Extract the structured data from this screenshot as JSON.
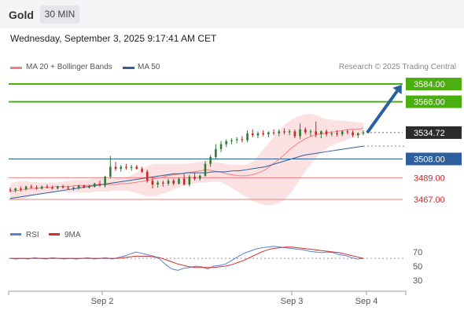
{
  "header": {
    "symbol": "Gold",
    "timeframe": "30 MIN",
    "datetime": "Wednesday, September 3, 2025 9:17:41 AM CET"
  },
  "legend": {
    "bollinger_label": "MA 20 + Bollinger Bands",
    "ma50_label": "MA 50",
    "credit": "Research © 2025 Trading Central",
    "rsi_label": "RSI",
    "rsi_ma_label": "9MA"
  },
  "colors": {
    "up_candle": "#2e7d32",
    "down_candle": "#c62828",
    "bollinger": "#f08080",
    "ma50": "#2c5f9e",
    "target_green": "#4caf10",
    "support_red": "#f08080",
    "pivot_blue": "#2c5f9e",
    "arrow": "#2c5f9e",
    "rsi": "#5b7fd4",
    "rsi_ma": "#d32f2f"
  },
  "chart_data": [
    {
      "type": "candlestick",
      "ylim": [
        3454,
        3600
      ],
      "x_ticks": [
        "Sep 2",
        "Sep 3",
        "Sep 4"
      ],
      "series": [
        {
          "name": "MA 20 + Bollinger Bands",
          "values": [
            3475,
            3476,
            3477,
            3478,
            3478,
            3479,
            3479,
            3480,
            3480,
            3480,
            3481,
            3481,
            3481,
            3482,
            3482,
            3482,
            3482,
            3483,
            3483,
            3484,
            3485,
            3486,
            3488,
            3489,
            3491,
            3492,
            3493,
            3494,
            3495,
            3496,
            3497,
            3496,
            3495,
            3493,
            3492,
            3491,
            3491,
            3492,
            3494,
            3497,
            3502,
            3507,
            3513,
            3519,
            3524,
            3528,
            3531,
            3533,
            3534,
            3535,
            3536,
            3537,
            3538,
            3538,
            3539
          ]
        },
        {
          "name": "MA 50",
          "values": [
            3468,
            3469,
            3470,
            3471,
            3472,
            3473,
            3474,
            3475,
            3476,
            3477,
            3478,
            3479,
            3480,
            3481,
            3482,
            3483,
            3484,
            3485,
            3486,
            3487,
            3488,
            3489,
            3490,
            3491,
            3492,
            3493,
            3493,
            3494,
            3494,
            3494,
            3494,
            3495,
            3495,
            3495,
            3496,
            3496,
            3497,
            3498,
            3499,
            3500,
            3502,
            3504,
            3506,
            3508,
            3510,
            3512,
            3513,
            3514,
            3515,
            3516,
            3517,
            3518,
            3519,
            3520,
            3521
          ]
        }
      ],
      "bollinger_upper": [
        3483,
        3485,
        3486,
        3485,
        3484,
        3484,
        3484,
        3484,
        3485,
        3486,
        3487,
        3487,
        3487,
        3488,
        3488,
        3488,
        3488,
        3489,
        3490,
        3493,
        3497,
        3501,
        3503,
        3503,
        3503,
        3503,
        3503,
        3503,
        3504,
        3505,
        3506,
        3505,
        3504,
        3503,
        3502,
        3502,
        3502,
        3505,
        3512,
        3520,
        3528,
        3536,
        3543,
        3548,
        3551,
        3553,
        3554,
        3552,
        3549,
        3548,
        3547,
        3547,
        3546,
        3545,
        3545
      ],
      "bollinger_lower": [
        3466,
        3466,
        3467,
        3470,
        3472,
        3473,
        3474,
        3475,
        3475,
        3474,
        3474,
        3474,
        3474,
        3475,
        3475,
        3475,
        3476,
        3476,
        3476,
        3474,
        3472,
        3470,
        3470,
        3472,
        3474,
        3477,
        3480,
        3482,
        3483,
        3484,
        3484,
        3485,
        3485,
        3482,
        3478,
        3474,
        3470,
        3466,
        3463,
        3461,
        3461,
        3463,
        3467,
        3474,
        3484,
        3494,
        3503,
        3511,
        3517,
        3521,
        3524,
        3526,
        3529,
        3531,
        3533
      ],
      "candles": [
        {
          "o": 3477,
          "h": 3479,
          "l": 3474,
          "c": 3476
        },
        {
          "o": 3476,
          "h": 3479,
          "l": 3474,
          "c": 3478
        },
        {
          "o": 3478,
          "h": 3480,
          "l": 3475,
          "c": 3477
        },
        {
          "o": 3477,
          "h": 3481,
          "l": 3476,
          "c": 3480
        },
        {
          "o": 3480,
          "h": 3482,
          "l": 3478,
          "c": 3479
        },
        {
          "o": 3479,
          "h": 3481,
          "l": 3477,
          "c": 3478
        },
        {
          "o": 3478,
          "h": 3481,
          "l": 3477,
          "c": 3480
        },
        {
          "o": 3480,
          "h": 3482,
          "l": 3478,
          "c": 3479
        },
        {
          "o": 3479,
          "h": 3481,
          "l": 3477,
          "c": 3478
        },
        {
          "o": 3478,
          "h": 3481,
          "l": 3477,
          "c": 3480
        },
        {
          "o": 3480,
          "h": 3482,
          "l": 3478,
          "c": 3479
        },
        {
          "o": 3479,
          "h": 3481,
          "l": 3477,
          "c": 3478
        },
        {
          "o": 3478,
          "h": 3480,
          "l": 3476,
          "c": 3479
        },
        {
          "o": 3479,
          "h": 3482,
          "l": 3477,
          "c": 3481
        },
        {
          "o": 3481,
          "h": 3482,
          "l": 3478,
          "c": 3479
        },
        {
          "o": 3479,
          "h": 3482,
          "l": 3478,
          "c": 3480
        },
        {
          "o": 3480,
          "h": 3484,
          "l": 3479,
          "c": 3483
        },
        {
          "o": 3483,
          "h": 3486,
          "l": 3480,
          "c": 3481
        },
        {
          "o": 3481,
          "h": 3491,
          "l": 3479,
          "c": 3490
        },
        {
          "o": 3490,
          "h": 3511,
          "l": 3488,
          "c": 3500
        },
        {
          "o": 3500,
          "h": 3505,
          "l": 3496,
          "c": 3498
        },
        {
          "o": 3498,
          "h": 3502,
          "l": 3495,
          "c": 3500
        },
        {
          "o": 3500,
          "h": 3503,
          "l": 3497,
          "c": 3499
        },
        {
          "o": 3499,
          "h": 3502,
          "l": 3496,
          "c": 3500
        },
        {
          "o": 3500,
          "h": 3502,
          "l": 3497,
          "c": 3498
        },
        {
          "o": 3498,
          "h": 3500,
          "l": 3494,
          "c": 3495
        },
        {
          "o": 3495,
          "h": 3497,
          "l": 3484,
          "c": 3486
        },
        {
          "o": 3486,
          "h": 3489,
          "l": 3478,
          "c": 3482
        },
        {
          "o": 3482,
          "h": 3486,
          "l": 3479,
          "c": 3484
        },
        {
          "o": 3484,
          "h": 3486,
          "l": 3480,
          "c": 3483
        },
        {
          "o": 3483,
          "h": 3488,
          "l": 3481,
          "c": 3486
        },
        {
          "o": 3486,
          "h": 3488,
          "l": 3481,
          "c": 3483
        },
        {
          "o": 3483,
          "h": 3489,
          "l": 3482,
          "c": 3488
        },
        {
          "o": 3488,
          "h": 3493,
          "l": 3481,
          "c": 3482
        },
        {
          "o": 3482,
          "h": 3492,
          "l": 3480,
          "c": 3490
        },
        {
          "o": 3490,
          "h": 3494,
          "l": 3486,
          "c": 3488
        },
        {
          "o": 3488,
          "h": 3492,
          "l": 3486,
          "c": 3491
        },
        {
          "o": 3491,
          "h": 3506,
          "l": 3490,
          "c": 3503
        },
        {
          "o": 3503,
          "h": 3512,
          "l": 3500,
          "c": 3510
        },
        {
          "o": 3510,
          "h": 3523,
          "l": 3508,
          "c": 3518
        },
        {
          "o": 3518,
          "h": 3526,
          "l": 3515,
          "c": 3523
        },
        {
          "o": 3523,
          "h": 3528,
          "l": 3520,
          "c": 3526
        },
        {
          "o": 3526,
          "h": 3529,
          "l": 3523,
          "c": 3527
        },
        {
          "o": 3527,
          "h": 3530,
          "l": 3524,
          "c": 3528
        },
        {
          "o": 3528,
          "h": 3531,
          "l": 3525,
          "c": 3527
        },
        {
          "o": 3527,
          "h": 3537,
          "l": 3525,
          "c": 3534
        },
        {
          "o": 3534,
          "h": 3538,
          "l": 3530,
          "c": 3532
        },
        {
          "o": 3532,
          "h": 3536,
          "l": 3529,
          "c": 3534
        },
        {
          "o": 3534,
          "h": 3537,
          "l": 3531,
          "c": 3533
        },
        {
          "o": 3533,
          "h": 3536,
          "l": 3530,
          "c": 3535
        },
        {
          "o": 3535,
          "h": 3538,
          "l": 3532,
          "c": 3534
        },
        {
          "o": 3534,
          "h": 3538,
          "l": 3531,
          "c": 3536
        },
        {
          "o": 3536,
          "h": 3539,
          "l": 3533,
          "c": 3535
        },
        {
          "o": 3535,
          "h": 3538,
          "l": 3532,
          "c": 3536
        },
        {
          "o": 3536,
          "h": 3538,
          "l": 3529,
          "c": 3531
        },
        {
          "o": 3531,
          "h": 3544,
          "l": 3528,
          "c": 3538
        },
        {
          "o": 3538,
          "h": 3540,
          "l": 3533,
          "c": 3535
        },
        {
          "o": 3535,
          "h": 3538,
          "l": 3531,
          "c": 3536
        },
        {
          "o": 3536,
          "h": 3546,
          "l": 3530,
          "c": 3533
        },
        {
          "o": 3533,
          "h": 3537,
          "l": 3529,
          "c": 3536
        },
        {
          "o": 3536,
          "h": 3538,
          "l": 3531,
          "c": 3533
        },
        {
          "o": 3533,
          "h": 3536,
          "l": 3531,
          "c": 3534
        },
        {
          "o": 3534,
          "h": 3537,
          "l": 3531,
          "c": 3533
        },
        {
          "o": 3533,
          "h": 3537,
          "l": 3531,
          "c": 3536
        },
        {
          "o": 3536,
          "h": 3538,
          "l": 3533,
          "c": 3535
        },
        {
          "o": 3535,
          "h": 3537,
          "l": 3530,
          "c": 3532
        },
        {
          "o": 3532,
          "h": 3535,
          "l": 3529,
          "c": 3534
        },
        {
          "o": 3534,
          "h": 3537,
          "l": 3532,
          "c": 3535
        }
      ],
      "levels": [
        {
          "value": 3584.0,
          "label": "3584.00",
          "style": "target"
        },
        {
          "value": 3566.0,
          "label": "3566.00",
          "style": "target"
        },
        {
          "value": 3534.72,
          "label": "3534.72",
          "style": "last"
        },
        {
          "value": 3508.0,
          "label": "3508.00",
          "style": "pivot"
        },
        {
          "value": 3489.0,
          "label": "3489.00",
          "style": "support"
        },
        {
          "value": 3467.0,
          "label": "3467.00",
          "style": "support"
        }
      ],
      "forecast_arrow": {
        "from": 3534.72,
        "to": 3584.0
      }
    },
    {
      "type": "line",
      "title": "RSI",
      "ylim": [
        20,
        80
      ],
      "y_ticks": [
        70,
        50,
        30
      ],
      "series": [
        {
          "name": "RSI",
          "values": [
            61,
            60,
            61,
            60,
            62,
            61,
            60,
            62,
            61,
            60,
            61,
            60,
            61,
            62,
            60,
            61,
            62,
            60,
            62,
            64,
            67,
            70,
            68,
            66,
            64,
            60,
            52,
            46,
            44,
            47,
            48,
            50,
            49,
            46,
            50,
            51,
            53,
            58,
            63,
            68,
            71,
            74,
            76,
            77,
            78,
            77,
            76,
            75,
            74,
            73,
            71,
            70,
            69,
            70,
            69,
            66,
            65,
            62,
            60,
            61
          ]
        },
        {
          "name": "9MA",
          "values": [
            61,
            61,
            61,
            61,
            61,
            61,
            61,
            61,
            61,
            61,
            61,
            61,
            61,
            61,
            61,
            61,
            61,
            61,
            61,
            62,
            63,
            64,
            64,
            64,
            63,
            62,
            59,
            56,
            53,
            51,
            49,
            48,
            48,
            48,
            48,
            49,
            50,
            52,
            55,
            58,
            62,
            66,
            70,
            73,
            75,
            76,
            77,
            77,
            76,
            75,
            74,
            73,
            72,
            71,
            70,
            69,
            67,
            65,
            63,
            61
          ]
        }
      ],
      "guide": 61
    }
  ]
}
